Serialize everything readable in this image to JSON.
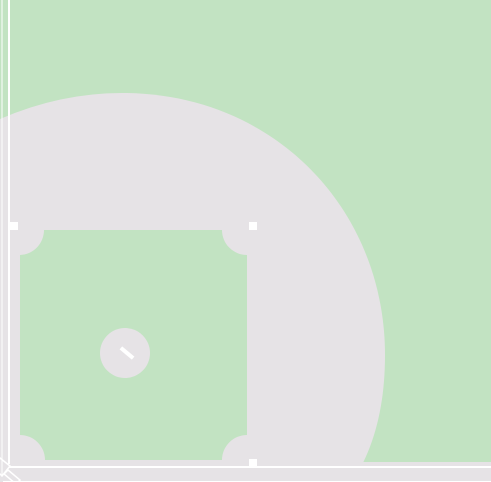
{
  "map": {
    "feature": "baseball-field",
    "colors": {
      "grass": "#c2e3c2",
      "infield_dirt": "#e6e3e6",
      "lines": "#ffffff"
    },
    "icons": [
      "home-plate-icon",
      "first-base-icon",
      "second-base-icon",
      "third-base-icon",
      "pitchers-rubber-icon"
    ]
  }
}
